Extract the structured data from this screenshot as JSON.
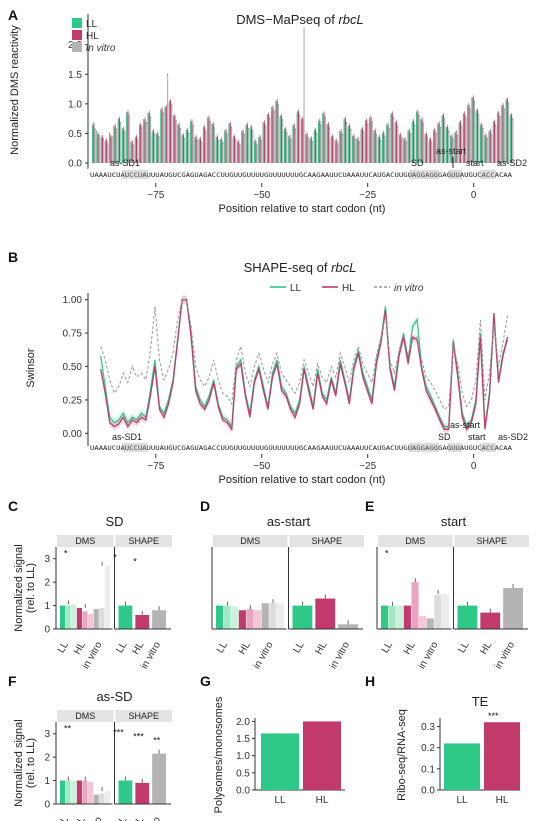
{
  "colors": {
    "LL": "#2ec988",
    "HL": "#c23a6c",
    "invitro": "#b4b4b4",
    "LL_light": "#a3e8c5",
    "HL_light": "#eaa4c0",
    "invitro_light": "#dcdcdc"
  },
  "panels": {
    "A": "A",
    "B": "B",
    "C": "C",
    "D": "D",
    "E": "E",
    "F": "F",
    "G": "G",
    "H": "H"
  },
  "sequence": "UAAAUCUAUCCUAUUUAUGUCGAGUAGACCUUGUUGUUUUGUUUUUUUGCAAGAAUUCUAAAUUCAUGACUUGUAGGAGGGAGUUAUGUCACCACAA",
  "chart_data": [
    {
      "type": "bar",
      "panel": "A",
      "title": "DMS−MaPseq of ",
      "title_italic": "rbcL",
      "xlabel": "Position relative to start codon (nt)",
      "ylabel": "Normalized DMS reactivity",
      "ylim": [
        0,
        2.35
      ],
      "xlim": [
        -91,
        10
      ],
      "x_ticks": [
        -75,
        -50,
        -25,
        0
      ],
      "y_ticks": [
        0.0,
        0.5,
        1.0,
        1.5,
        2.0
      ],
      "legend": [
        "LL",
        "HL",
        "in vitro"
      ],
      "annotations": [
        "as-SD1",
        "SD",
        "as-start",
        "start",
        "as-SD2"
      ],
      "positions_start": -88,
      "series": [
        {
          "name": "LL",
          "values": [
            0.62,
            0.52,
            0.41,
            0.35,
            0.48,
            0.6,
            0.72,
            0.55,
            0.83,
            0.33,
            0.41,
            0.62,
            0.71,
            0.82,
            0.51,
            0.47,
            0.88,
            0.92,
            1.02,
            0.77,
            0.62,
            0.44,
            0.53,
            0.68,
            0.41,
            0.38,
            0.58,
            0.74,
            0.63,
            0.41,
            0.37,
            0.52,
            0.64,
            0.42,
            0.33,
            0.51,
            0.62,
            0.58,
            0.34,
            0.41,
            0.66,
            0.79,
            0.91,
            1.02,
            0.77,
            0.55,
            0.42,
            0.61,
            0.84,
            0.72,
            0.46,
            0.39,
            0.53,
            0.68,
            0.81,
            0.63,
            0.42,
            0.35,
            0.51,
            0.72,
            0.6,
            0.43,
            0.38,
            0.55,
            0.69,
            0.74,
            0.52,
            0.41,
            0.48,
            0.62,
            0.81,
            0.66,
            0.45,
            0.38,
            0.52,
            0.68,
            0.84,
            0.71,
            0.46,
            0.37,
            0.53,
            0.64,
            0.78,
            0.58,
            0.43,
            0.49,
            0.66,
            0.81,
            0.95,
            1.08,
            0.86,
            0.62,
            0.44,
            0.51,
            0.67,
            0.82,
            0.95,
            1.05,
            0.78
          ]
        },
        {
          "name": "HL",
          "values": [
            0.66,
            0.48,
            0.44,
            0.38,
            0.45,
            0.63,
            0.75,
            0.58,
            0.86,
            0.36,
            0.44,
            0.65,
            0.74,
            0.85,
            0.54,
            0.5,
            0.91,
            0.95,
            1.05,
            0.8,
            0.65,
            0.47,
            0.56,
            0.71,
            0.44,
            0.41,
            0.61,
            0.77,
            0.66,
            0.44,
            0.4,
            0.55,
            0.67,
            0.45,
            0.36,
            0.54,
            0.65,
            0.61,
            0.37,
            0.44,
            0.69,
            0.82,
            0.94,
            1.05,
            0.8,
            0.58,
            0.45,
            0.64,
            0.87,
            0.75,
            0.49,
            0.42,
            0.56,
            0.71,
            0.84,
            0.66,
            0.45,
            0.38,
            0.54,
            0.75,
            0.63,
            0.46,
            0.41,
            0.58,
            0.72,
            0.77,
            0.55,
            0.44,
            0.51,
            0.65,
            0.84,
            0.69,
            0.48,
            0.41,
            0.55,
            0.71,
            0.87,
            0.74,
            0.49,
            0.4,
            0.56,
            0.67,
            0.81,
            0.61,
            0.46,
            0.52,
            0.69,
            0.84,
            0.98,
            1.11,
            0.89,
            0.65,
            0.47,
            0.54,
            0.7,
            0.85,
            0.98,
            1.08,
            0.81
          ]
        },
        {
          "name": "in vitro",
          "values": [
            0.55,
            0.44,
            0.38,
            0.3,
            0.42,
            0.55,
            0.66,
            0.5,
            0.78,
            0.28,
            0.36,
            0.58,
            0.66,
            0.76,
            0.46,
            0.42,
            0.82,
            1.48,
            0.96,
            0.7,
            0.56,
            0.39,
            0.48,
            0.62,
            0.36,
            0.33,
            0.52,
            0.68,
            0.57,
            0.36,
            0.32,
            0.47,
            0.58,
            0.37,
            0.28,
            0.46,
            0.56,
            0.52,
            0.29,
            0.36,
            0.6,
            0.73,
            0.85,
            0.96,
            0.71,
            0.49,
            0.37,
            0.55,
            0.78,
            2.25,
            0.41,
            0.34,
            0.48,
            0.62,
            0.75,
            0.57,
            0.37,
            0.3,
            0.46,
            0.66,
            0.54,
            0.38,
            0.33,
            0.5,
            0.63,
            0.68,
            0.46,
            0.36,
            0.43,
            0.56,
            0.75,
            0.6,
            0.4,
            0.33,
            0.47,
            0.62,
            0.78,
            0.65,
            0.41,
            0.32,
            0.48,
            0.58,
            0.72,
            0.52,
            0.38,
            0.44,
            0.6,
            0.75,
            0.89,
            1.02,
            0.8,
            0.56,
            0.39,
            0.46,
            0.61,
            0.76,
            0.89,
            0.99,
            0.72
          ]
        }
      ]
    },
    {
      "type": "line",
      "panel": "B",
      "title": "SHAPE-seq of ",
      "title_italic": "rbcL",
      "xlabel": "Position relative to start codon (nt)",
      "ylabel": "Swinsor",
      "ylim": [
        -0.05,
        1.05
      ],
      "xlim": [
        -91,
        10
      ],
      "x_ticks": [
        -75,
        -50,
        -25,
        0
      ],
      "y_ticks": [
        0.0,
        0.25,
        0.5,
        0.75,
        1.0
      ],
      "legend": [
        "LL",
        "HL",
        "in vitro"
      ],
      "annotations": [
        "as-SD1",
        "SD",
        "as-start",
        "start",
        "as-SD2"
      ],
      "positions_start": -88,
      "series": [
        {
          "name": "LL",
          "values": [
            0.58,
            0.35,
            0.12,
            0.08,
            0.1,
            0.15,
            0.08,
            0.12,
            0.1,
            0.15,
            0.12,
            0.32,
            0.55,
            0.2,
            0.15,
            0.25,
            0.4,
            0.7,
            1.0,
            1.0,
            0.75,
            0.35,
            0.25,
            0.2,
            0.28,
            0.4,
            0.22,
            0.12,
            0.1,
            0.05,
            0.5,
            0.55,
            0.3,
            0.15,
            0.4,
            0.5,
            0.35,
            0.2,
            0.45,
            0.55,
            0.35,
            0.3,
            0.2,
            0.15,
            0.25,
            0.5,
            0.35,
            0.2,
            0.48,
            0.3,
            0.25,
            0.42,
            0.3,
            0.55,
            0.4,
            0.25,
            0.5,
            0.62,
            0.45,
            0.35,
            0.25,
            0.55,
            0.7,
            0.95,
            0.5,
            0.35,
            0.6,
            0.75,
            0.55,
            0.8,
            0.85,
            0.5,
            0.35,
            0.28,
            0.2,
            0.12,
            0.05,
            0.05,
            0.7,
            0.45,
            0.15,
            0.05,
            0.1,
            0.25,
            0.75,
            0.05,
            0.3,
            0.85,
            0.4,
            0.6,
            0.7
          ]
        },
        {
          "name": "HL",
          "values": [
            0.48,
            0.3,
            0.08,
            0.05,
            0.07,
            0.12,
            0.05,
            0.1,
            0.08,
            0.12,
            0.1,
            0.28,
            0.5,
            0.18,
            0.12,
            0.22,
            0.38,
            0.68,
            1.0,
            1.0,
            0.72,
            0.32,
            0.22,
            0.18,
            0.25,
            0.38,
            0.2,
            0.1,
            0.08,
            0.03,
            0.48,
            0.52,
            0.28,
            0.12,
            0.38,
            0.48,
            0.32,
            0.18,
            0.42,
            0.52,
            0.32,
            0.28,
            0.18,
            0.12,
            0.22,
            0.48,
            0.32,
            0.18,
            0.45,
            0.28,
            0.22,
            0.4,
            0.28,
            0.52,
            0.38,
            0.22,
            0.48,
            0.6,
            0.42,
            0.32,
            0.22,
            0.52,
            0.68,
            0.92,
            0.48,
            0.32,
            0.58,
            0.72,
            0.52,
            0.72,
            0.7,
            0.48,
            0.32,
            0.25,
            0.18,
            0.1,
            0.03,
            0.03,
            0.68,
            0.42,
            0.12,
            0.03,
            0.08,
            0.22,
            0.72,
            0.03,
            0.28,
            0.9,
            0.38,
            0.58,
            0.72
          ]
        },
        {
          "name": "in vitro",
          "values": [
            0.65,
            0.55,
            0.4,
            0.3,
            0.35,
            0.45,
            0.38,
            0.5,
            0.42,
            0.45,
            0.4,
            0.62,
            0.95,
            0.55,
            0.4,
            0.48,
            0.6,
            0.85,
            1.0,
            1.0,
            0.8,
            0.5,
            0.4,
            0.35,
            0.42,
            0.55,
            0.4,
            0.3,
            0.28,
            0.22,
            0.55,
            0.65,
            0.45,
            0.35,
            0.5,
            0.6,
            0.48,
            0.38,
            0.52,
            0.6,
            0.45,
            0.4,
            0.35,
            0.3,
            0.38,
            0.55,
            0.45,
            0.35,
            0.52,
            0.42,
            0.38,
            0.5,
            0.42,
            0.6,
            0.5,
            0.38,
            0.55,
            0.65,
            0.52,
            0.45,
            0.38,
            0.58,
            0.72,
            0.88,
            0.55,
            0.45,
            0.62,
            0.75,
            0.58,
            0.7,
            0.72,
            0.55,
            0.42,
            0.38,
            0.32,
            0.25,
            0.18,
            0.2,
            0.65,
            0.52,
            0.3,
            0.2,
            0.25,
            0.4,
            0.85,
            0.25,
            0.45,
            0.82,
            0.5,
            0.68,
            0.88
          ]
        }
      ]
    },
    {
      "type": "bar",
      "panel": "C",
      "title": "SD",
      "strips": [
        "DMS",
        "SHAPE"
      ],
      "ylabel": "Normalized signal\n(rel. to LL)",
      "ylim": [
        0,
        3.5
      ],
      "y_ticks": [
        0,
        1,
        2,
        3
      ],
      "categories": [
        "LL",
        "HL",
        "in vitro"
      ],
      "dms": [
        {
          "g": "LL",
          "v": [
            1.0,
            1.0,
            1.05
          ]
        },
        {
          "g": "HL",
          "v": [
            0.9,
            0.75,
            0.65
          ]
        },
        {
          "g": "in vitro",
          "v": [
            0.85,
            0.9,
            2.7
          ]
        }
      ],
      "shape": [
        {
          "g": "LL",
          "v": 1.0
        },
        {
          "g": "HL",
          "v": 0.6
        },
        {
          "g": "in vitro",
          "v": 0.8
        }
      ],
      "sig": [
        "*",
        "*",
        "*"
      ]
    },
    {
      "type": "bar",
      "panel": "D",
      "title": "as-start",
      "strips": [
        "DMS",
        "SHAPE"
      ],
      "ylim": [
        0,
        3.5
      ],
      "categories": [
        "LL",
        "HL",
        "in vitro"
      ],
      "dms": [
        {
          "g": "LL",
          "v": [
            1.0,
            1.0,
            0.95
          ]
        },
        {
          "g": "HL",
          "v": [
            0.8,
            0.85,
            0.8
          ]
        },
        {
          "g": "in vitro",
          "v": [
            1.1,
            1.1,
            1.1
          ]
        }
      ],
      "shape": [
        {
          "g": "LL",
          "v": 1.0
        },
        {
          "g": "HL",
          "v": 1.3
        },
        {
          "g": "in vitro",
          "v": 0.2
        }
      ],
      "sig": []
    },
    {
      "type": "bar",
      "panel": "E",
      "title": "start",
      "strips": [
        "DMS",
        "SHAPE"
      ],
      "ylim": [
        0,
        3.5
      ],
      "categories": [
        "LL",
        "HL",
        "in vitro"
      ],
      "dms": [
        {
          "g": "LL",
          "v": [
            1.0,
            1.0,
            1.0
          ]
        },
        {
          "g": "HL",
          "v": [
            1.0,
            2.0,
            0.55
          ]
        },
        {
          "g": "in vitro",
          "v": [
            0.45,
            1.45,
            1.5
          ]
        }
      ],
      "shape": [
        {
          "g": "LL",
          "v": 1.0
        },
        {
          "g": "HL",
          "v": 0.7
        },
        {
          "g": "in vitro",
          "v": 1.75
        }
      ],
      "sig": [
        "*"
      ]
    },
    {
      "type": "bar",
      "panel": "F",
      "title": "as-SD",
      "strips": [
        "DMS",
        "SHAPE"
      ],
      "ylabel": "Normalized signal\n(rel. to LL)",
      "ylim": [
        0,
        3.5
      ],
      "y_ticks": [
        0,
        1,
        2,
        3
      ],
      "categories": [
        "LL",
        "HL",
        "in vitro"
      ],
      "dms": [
        {
          "g": "LL",
          "v": [
            1.0,
            1.0,
            1.0
          ]
        },
        {
          "g": "HL",
          "v": [
            1.0,
            1.0,
            0.95
          ]
        },
        {
          "g": "in vitro",
          "v": [
            0.4,
            0.45,
            0.55
          ]
        }
      ],
      "shape": [
        {
          "g": "LL",
          "v": 1.0
        },
        {
          "g": "HL",
          "v": 0.9
        },
        {
          "g": "in vitro",
          "v": 2.15
        }
      ],
      "sig": [
        "**",
        "***",
        "***",
        "**"
      ]
    },
    {
      "type": "bar",
      "panel": "G",
      "ylabel": "Polysomes/monosomes",
      "ylim": [
        0,
        2.1
      ],
      "y_ticks": [
        0.0,
        0.5,
        1.0,
        1.5,
        2.0
      ],
      "categories": [
        "LL",
        "HL"
      ],
      "values": [
        1.65,
        2.0
      ]
    },
    {
      "type": "bar",
      "panel": "H",
      "title": "TE",
      "ylabel": "Ribo-seq/RNA-seq",
      "ylim": [
        0,
        0.34
      ],
      "y_ticks": [
        0.0,
        0.1,
        0.2,
        0.3
      ],
      "categories": [
        "LL",
        "HL"
      ],
      "values": [
        0.22,
        0.32
      ],
      "sig": [
        "***"
      ]
    }
  ]
}
